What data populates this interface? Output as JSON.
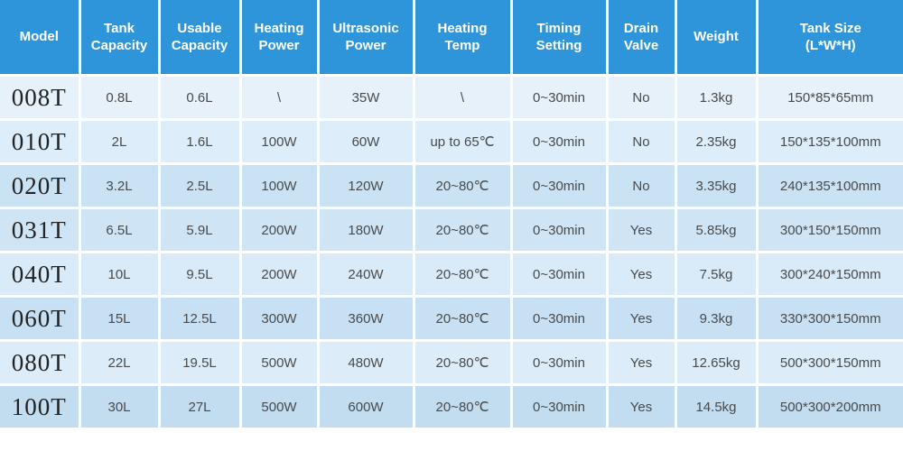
{
  "colors": {
    "header_bg": "#2e95da",
    "header_text": "#ffffff",
    "cell_text": "#4a4a4a",
    "model_text": "#222222",
    "separator": "#ffffff"
  },
  "table": {
    "columns": [
      {
        "id": "model",
        "label": "Model"
      },
      {
        "id": "tank-capacity",
        "label": "Tank\nCapacity"
      },
      {
        "id": "usable-capacity",
        "label": "Usable\nCapacity"
      },
      {
        "id": "heating-power",
        "label": "Heating\nPower"
      },
      {
        "id": "ultrasonic-power",
        "label": "Ultrasonic\nPower"
      },
      {
        "id": "heating-temp",
        "label": "Heating\nTemp"
      },
      {
        "id": "timing-setting",
        "label": "Timing\nSetting"
      },
      {
        "id": "drain-valve",
        "label": "Drain\nValve"
      },
      {
        "id": "weight",
        "label": "Weight"
      },
      {
        "id": "tank-size",
        "label": "Tank Size\n(L*W*H)"
      }
    ],
    "rows": [
      {
        "bg": "#e7f1fa",
        "cells": [
          "008T",
          "0.8L",
          "0.6L",
          "\\",
          "35W",
          "\\",
          "0~30min",
          "No",
          "1.3kg",
          "150*85*65mm"
        ]
      },
      {
        "bg": "#ddedf9",
        "cells": [
          "010T",
          "2L",
          "1.6L",
          "100W",
          "60W",
          "up to 65℃",
          "0~30min",
          "No",
          "2.35kg",
          "150*135*100mm"
        ]
      },
      {
        "bg": "#c9e2f4",
        "cells": [
          "020T",
          "3.2L",
          "2.5L",
          "100W",
          "120W",
          "20~80℃",
          "0~30min",
          "No",
          "3.35kg",
          "240*135*100mm"
        ]
      },
      {
        "bg": "#cfe5f6",
        "cells": [
          "031T",
          "6.5L",
          "5.9L",
          "200W",
          "180W",
          "20~80℃",
          "0~30min",
          "Yes",
          "5.85kg",
          "300*150*150mm"
        ]
      },
      {
        "bg": "#d9ebf8",
        "cells": [
          "040T",
          "10L",
          "9.5L",
          "200W",
          "240W",
          "20~80℃",
          "0~30min",
          "Yes",
          "7.5kg",
          "300*240*150mm"
        ]
      },
      {
        "bg": "#c7e0f3",
        "cells": [
          "060T",
          "15L",
          "12.5L",
          "300W",
          "360W",
          "20~80℃",
          "0~30min",
          "Yes",
          "9.3kg",
          "330*300*150mm"
        ]
      },
      {
        "bg": "#dcedf9",
        "cells": [
          "080T",
          "22L",
          "19.5L",
          "500W",
          "480W",
          "20~80℃",
          "0~30min",
          "Yes",
          "12.65kg",
          "500*300*150mm"
        ]
      },
      {
        "bg": "#c2dcf0",
        "cells": [
          "100T",
          "30L",
          "27L",
          "500W",
          "600W",
          "20~80℃",
          "0~30min",
          "Yes",
          "14.5kg",
          "500*300*200mm"
        ]
      }
    ]
  }
}
